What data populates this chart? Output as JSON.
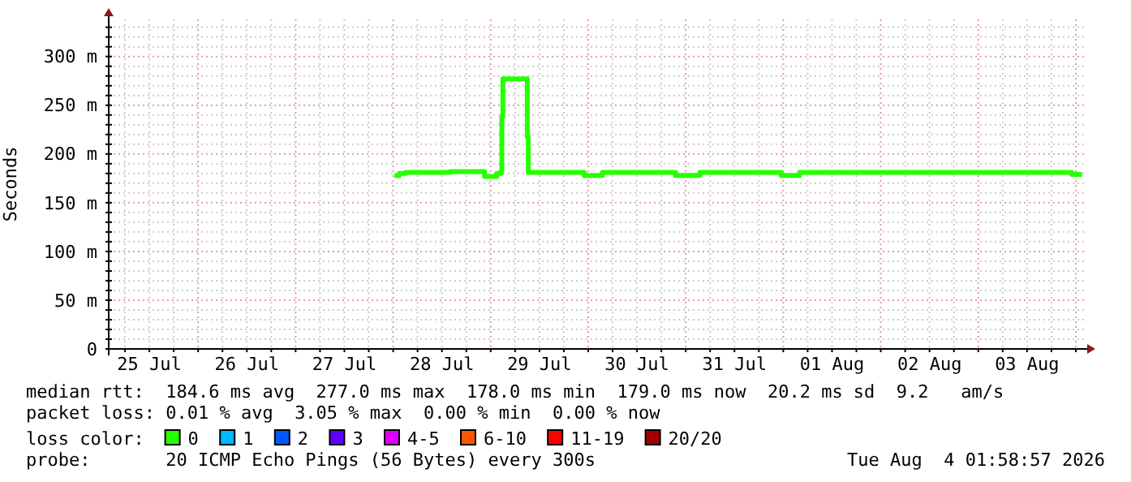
{
  "chart_data": {
    "type": "step",
    "ylabel": "Seconds",
    "legend_title": "loss color:",
    "legend": "bottom",
    "grid": true,
    "line_style": "solid",
    "marker": "none",
    "x": [
      "2026-07-28T00:20",
      "2026-07-28T01:30",
      "2026-07-28T03:00",
      "2026-07-28T14:00",
      "2026-07-28T22:30",
      "2026-07-29T01:30",
      "2026-07-29T02:30",
      "2026-07-29T02:45",
      "2026-07-29T03:00",
      "2026-07-29T09:00",
      "2026-07-29T09:15",
      "2026-07-29T23:00",
      "2026-07-30T03:30",
      "2026-07-30T21:30",
      "2026-07-31T03:30",
      "2026-07-31T23:30",
      "2026-08-01T04:00",
      "2026-08-03T23:00",
      "2026-08-04T01:30"
    ],
    "xlim": [
      "2026-07-25T02:00",
      "2026-08-04T02:00"
    ],
    "xticks": [
      {
        "value": "2026-07-25T06:00",
        "label": null
      },
      {
        "value": "2026-07-25T12:00",
        "label": "25 Jul"
      },
      {
        "value": "2026-07-25T18:00",
        "label": null
      },
      {
        "value": "2026-07-26T00:00",
        "label": null
      },
      {
        "value": "2026-07-26T06:00",
        "label": null
      },
      {
        "value": "2026-07-26T12:00",
        "label": "26 Jul"
      },
      {
        "value": "2026-07-26T18:00",
        "label": null
      },
      {
        "value": "2026-07-27T00:00",
        "label": null
      },
      {
        "value": "2026-07-27T06:00",
        "label": null
      },
      {
        "value": "2026-07-27T12:00",
        "label": "27 Jul"
      },
      {
        "value": "2026-07-27T18:00",
        "label": null
      },
      {
        "value": "2026-07-28T00:00",
        "label": null
      },
      {
        "value": "2026-07-28T06:00",
        "label": null
      },
      {
        "value": "2026-07-28T12:00",
        "label": "28 Jul"
      },
      {
        "value": "2026-07-28T18:00",
        "label": null
      },
      {
        "value": "2026-07-29T00:00",
        "label": null
      },
      {
        "value": "2026-07-29T06:00",
        "label": null
      },
      {
        "value": "2026-07-29T12:00",
        "label": "29 Jul"
      },
      {
        "value": "2026-07-29T18:00",
        "label": null
      },
      {
        "value": "2026-07-30T00:00",
        "label": null
      },
      {
        "value": "2026-07-30T06:00",
        "label": null
      },
      {
        "value": "2026-07-30T12:00",
        "label": "30 Jul"
      },
      {
        "value": "2026-07-30T18:00",
        "label": null
      },
      {
        "value": "2026-07-31T00:00",
        "label": null
      },
      {
        "value": "2026-07-31T06:00",
        "label": null
      },
      {
        "value": "2026-07-31T12:00",
        "label": "31 Jul"
      },
      {
        "value": "2026-07-31T18:00",
        "label": null
      },
      {
        "value": "2026-08-01T00:00",
        "label": null
      },
      {
        "value": "2026-08-01T06:00",
        "label": null
      },
      {
        "value": "2026-08-01T12:00",
        "label": "01 Aug"
      },
      {
        "value": "2026-08-01T18:00",
        "label": null
      },
      {
        "value": "2026-08-02T00:00",
        "label": null
      },
      {
        "value": "2026-08-02T06:00",
        "label": null
      },
      {
        "value": "2026-08-02T12:00",
        "label": "02 Aug"
      },
      {
        "value": "2026-08-02T18:00",
        "label": null
      },
      {
        "value": "2026-08-03T00:00",
        "label": null
      },
      {
        "value": "2026-08-03T06:00",
        "label": null
      },
      {
        "value": "2026-08-03T12:00",
        "label": "03 Aug"
      },
      {
        "value": "2026-08-03T18:00",
        "label": null
      },
      {
        "value": "2026-08-04T00:00",
        "label": null
      }
    ],
    "ylim": [
      0,
      338
    ],
    "yticks": [
      {
        "value": 0,
        "label": "0"
      },
      {
        "value": 10,
        "label": null
      },
      {
        "value": 20,
        "label": null
      },
      {
        "value": 30,
        "label": null
      },
      {
        "value": 40,
        "label": null
      },
      {
        "value": 50,
        "label": "50 m"
      },
      {
        "value": 60,
        "label": null
      },
      {
        "value": 70,
        "label": null
      },
      {
        "value": 80,
        "label": null
      },
      {
        "value": 90,
        "label": null
      },
      {
        "value": 100,
        "label": "100 m"
      },
      {
        "value": 110,
        "label": null
      },
      {
        "value": 120,
        "label": null
      },
      {
        "value": 130,
        "label": null
      },
      {
        "value": 140,
        "label": null
      },
      {
        "value": 150,
        "label": "150 m"
      },
      {
        "value": 160,
        "label": null
      },
      {
        "value": 170,
        "label": null
      },
      {
        "value": 180,
        "label": null
      },
      {
        "value": 190,
        "label": null
      },
      {
        "value": 200,
        "label": "200 m"
      },
      {
        "value": 210,
        "label": null
      },
      {
        "value": 220,
        "label": null
      },
      {
        "value": 230,
        "label": null
      },
      {
        "value": 240,
        "label": null
      },
      {
        "value": 250,
        "label": "250 m"
      },
      {
        "value": 260,
        "label": null
      },
      {
        "value": 270,
        "label": null
      },
      {
        "value": 280,
        "label": null
      },
      {
        "value": 290,
        "label": null
      },
      {
        "value": 300,
        "label": "300 m"
      },
      {
        "value": 310,
        "label": null
      },
      {
        "value": 320,
        "label": null
      },
      {
        "value": 330,
        "label": null
      }
    ],
    "series": [
      {
        "name": "0",
        "color": "#26ff00",
        "values": [
          178,
          180,
          181,
          182,
          177,
          180,
          182,
          238,
          277,
          218,
          181,
          178,
          181,
          178,
          181,
          178,
          181,
          179,
          179
        ]
      },
      {
        "name": "1",
        "color": "#00b8ff",
        "values": [
          null,
          null,
          null,
          null,
          null,
          null,
          null,
          null,
          null,
          null,
          null,
          null,
          null,
          null,
          null,
          null,
          null,
          null,
          null
        ]
      },
      {
        "name": "2",
        "color": "#0059ff",
        "values": [
          null,
          null,
          null,
          null,
          null,
          null,
          null,
          null,
          null,
          null,
          null,
          null,
          null,
          null,
          null,
          null,
          null,
          null,
          null
        ]
      },
      {
        "name": "3",
        "color": "#5e00ff",
        "values": [
          null,
          null,
          null,
          null,
          null,
          null,
          null,
          null,
          null,
          null,
          null,
          null,
          null,
          null,
          null,
          null,
          null,
          null,
          null
        ]
      },
      {
        "name": "4-5",
        "color": "#dd00ff",
        "values": [
          null,
          null,
          null,
          null,
          null,
          null,
          null,
          null,
          null,
          null,
          null,
          null,
          null,
          null,
          null,
          null,
          null,
          null,
          null
        ]
      },
      {
        "name": "6-10",
        "color": "#ff5500",
        "values": [
          null,
          null,
          null,
          null,
          null,
          null,
          null,
          null,
          null,
          null,
          null,
          null,
          null,
          null,
          null,
          null,
          null,
          null,
          null
        ]
      },
      {
        "name": "11-19",
        "color": "#ff0000",
        "values": [
          null,
          null,
          null,
          null,
          null,
          null,
          null,
          null,
          null,
          null,
          null,
          null,
          null,
          null,
          null,
          null,
          null,
          null,
          null
        ]
      },
      {
        "name": "20/20",
        "color": "#a10000",
        "values": [
          null,
          null,
          null,
          null,
          null,
          null,
          null,
          null,
          null,
          null,
          null,
          null,
          null,
          null,
          null,
          null,
          null,
          null,
          null
        ]
      }
    ],
    "annotations": [
      "median rtt:  184.6 ms avg  277.0 ms max  178.0 ms min  179.0 ms now  20.2 ms sd  9.2   am/s",
      "packet loss: 0.01 % avg  3.05 % max  0.00 % min  0.00 % now",
      "probe:       20 ICMP Echo Pings (56 Bytes) every 300s",
      "Tue Aug  4 01:58:57 2026"
    ]
  }
}
